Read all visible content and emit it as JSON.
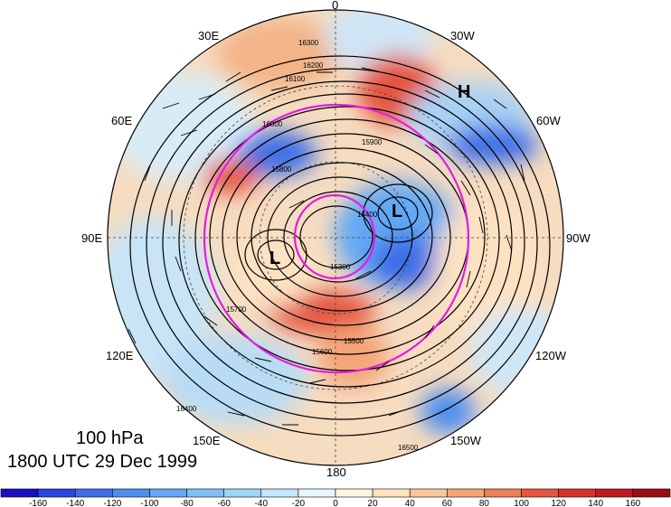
{
  "title": {
    "level": "100 hPa",
    "time": "1800 UTC 29 Dec 1999"
  },
  "longitude_labels": {
    "lon_0": "0",
    "lon_30w": "30W",
    "lon_60w": "60W",
    "lon_90w": "90W",
    "lon_120w": "120W",
    "lon_150w": "150W",
    "lon_180": "180",
    "lon_150e": "150E",
    "lon_120e": "120E",
    "lon_90e": "90E",
    "lon_60e": "60E",
    "lon_30e": "30E"
  },
  "centers": {
    "high": "H",
    "low_1": "L",
    "low_2": "L"
  },
  "contour_labels": [
    "16300",
    "16200",
    "16100",
    "16000",
    "15900",
    "15800",
    "15700",
    "15600",
    "15500",
    "15400",
    "15300",
    "16400",
    "16500"
  ],
  "colorbar": {
    "ticks": [
      "-160",
      "-140",
      "-120",
      "-100",
      "-80",
      "-60",
      "-40",
      "-20",
      "0",
      "20",
      "40",
      "60",
      "80",
      "100",
      "120",
      "140",
      "160"
    ],
    "colors": [
      "#1a10c0",
      "#2d45dd",
      "#3e6ee8",
      "#4c8ef0",
      "#64a8f4",
      "#80bff6",
      "#a0d4f8",
      "#c4e6fb",
      "#e6f6fe",
      "#fef6e4",
      "#fde2c2",
      "#f8c69c",
      "#f3a578",
      "#ec7f58",
      "#e55540",
      "#d7302f",
      "#bf1a22",
      "#9c0d17"
    ]
  }
}
